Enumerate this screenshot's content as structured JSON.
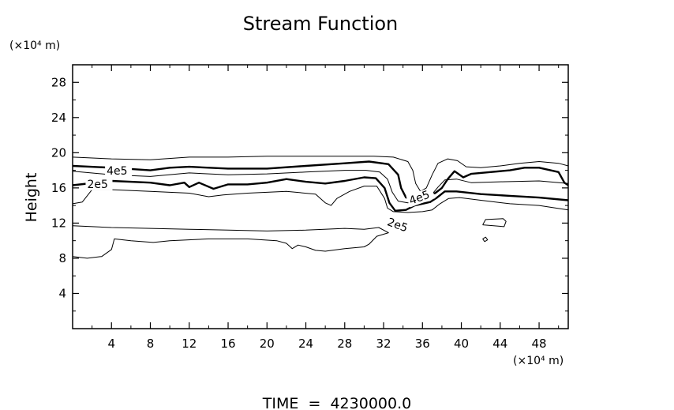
{
  "chart_data": {
    "type": "contour",
    "title": "Stream Function",
    "xlabel": "",
    "ylabel": "Height",
    "x_unit": "(×10⁴ m)",
    "y_unit": "(×10⁴ m)",
    "xlim": [
      0,
      51
    ],
    "ylim": [
      0,
      30
    ],
    "x_ticks": [
      4,
      8,
      12,
      16,
      20,
      24,
      28,
      32,
      36,
      40,
      44,
      48
    ],
    "y_ticks": [
      4,
      8,
      12,
      16,
      20,
      24,
      28
    ],
    "grid": false,
    "contour_labels": [
      "4e5",
      "2e5",
      "4e5",
      "2e5"
    ],
    "contours": [
      {
        "level": "upper-outer",
        "points": [
          [
            0,
            19.5
          ],
          [
            4,
            19.3
          ],
          [
            8,
            19.2
          ],
          [
            12,
            19.5
          ],
          [
            16,
            19.5
          ],
          [
            20,
            19.6
          ],
          [
            24,
            19.6
          ],
          [
            28,
            19.6
          ],
          [
            31,
            19.6
          ],
          [
            33,
            19.5
          ],
          [
            34.5,
            19
          ],
          [
            35,
            18
          ],
          [
            35.3,
            16.5
          ],
          [
            35.8,
            15.6
          ],
          [
            36.4,
            16
          ],
          [
            37,
            17.5
          ],
          [
            37.6,
            18.8
          ],
          [
            38.6,
            19.3
          ],
          [
            39.6,
            19.1
          ],
          [
            40.5,
            18.4
          ],
          [
            42,
            18.3
          ],
          [
            44,
            18.5
          ],
          [
            46,
            18.8
          ],
          [
            48,
            19
          ],
          [
            50,
            18.8
          ],
          [
            51,
            18.5
          ]
        ]
      },
      {
        "level": "4e5",
        "points": [
          [
            0,
            18.5
          ],
          [
            4,
            18.3
          ],
          [
            8,
            18
          ],
          [
            10,
            18.3
          ],
          [
            12,
            18.4
          ],
          [
            16,
            18.2
          ],
          [
            20,
            18.2
          ],
          [
            24,
            18.5
          ],
          [
            28,
            18.8
          ],
          [
            30.5,
            19
          ],
          [
            32.5,
            18.7
          ],
          [
            33.5,
            17.5
          ],
          [
            33.8,
            16
          ],
          [
            34.3,
            14.9
          ],
          [
            35.5,
            14.8
          ],
          [
            36.5,
            15.3
          ],
          [
            37.3,
            15.4
          ],
          [
            38,
            16
          ],
          [
            38.6,
            17
          ],
          [
            39.3,
            17.9
          ],
          [
            40.2,
            17.2
          ],
          [
            41,
            17.6
          ],
          [
            43,
            17.8
          ],
          [
            45,
            18
          ],
          [
            46.5,
            18.3
          ],
          [
            48,
            18.3
          ],
          [
            50,
            17.8
          ],
          [
            50.6,
            16.6
          ],
          [
            51,
            16.3
          ]
        ]
      },
      {
        "level": "mid-thin",
        "points": [
          [
            0,
            17.9
          ],
          [
            4,
            17.5
          ],
          [
            8,
            17.3
          ],
          [
            12,
            17.7
          ],
          [
            16,
            17.5
          ],
          [
            20,
            17.6
          ],
          [
            24,
            17.8
          ],
          [
            28,
            18
          ],
          [
            30.2,
            18
          ],
          [
            31.6,
            17.8
          ],
          [
            32.4,
            17
          ],
          [
            32.9,
            15.5
          ],
          [
            33.5,
            14.5
          ],
          [
            34.5,
            14.3
          ],
          [
            35.6,
            14.6
          ],
          [
            36.4,
            14.8
          ],
          [
            37,
            15.3
          ],
          [
            37.6,
            16.1
          ],
          [
            38.3,
            16.9
          ],
          [
            39.5,
            17
          ],
          [
            41,
            16.6
          ],
          [
            44,
            16.7
          ],
          [
            48,
            16.8
          ],
          [
            51,
            16.5
          ]
        ]
      },
      {
        "level": "2e5",
        "points": [
          [
            0,
            16.3
          ],
          [
            4,
            16.8
          ],
          [
            8,
            16.6
          ],
          [
            10,
            16.3
          ],
          [
            11.5,
            16.6
          ],
          [
            12,
            16.1
          ],
          [
            13,
            16.6
          ],
          [
            14.5,
            15.9
          ],
          [
            16,
            16.4
          ],
          [
            18,
            16.4
          ],
          [
            20,
            16.6
          ],
          [
            22,
            17
          ],
          [
            24,
            16.7
          ],
          [
            26,
            16.5
          ],
          [
            28,
            16.8
          ],
          [
            30,
            17.2
          ],
          [
            31.2,
            17.1
          ],
          [
            32.1,
            16
          ],
          [
            32.6,
            14.3
          ],
          [
            33.2,
            13.4
          ],
          [
            34.3,
            13.5
          ],
          [
            35.2,
            14
          ],
          [
            36,
            14.2
          ],
          [
            36.8,
            14.4
          ],
          [
            37.5,
            14.9
          ],
          [
            38.3,
            15.6
          ],
          [
            39.5,
            15.6
          ],
          [
            42,
            15.3
          ],
          [
            45,
            15.1
          ],
          [
            48,
            14.9
          ],
          [
            51,
            14.6
          ]
        ]
      },
      {
        "level": "lower-outer",
        "points": [
          [
            0,
            14.2
          ],
          [
            1,
            14.4
          ],
          [
            2,
            15.8
          ],
          [
            4,
            15.8
          ],
          [
            8,
            15.6
          ],
          [
            10,
            15.5
          ],
          [
            12,
            15.4
          ],
          [
            14,
            15
          ],
          [
            15.5,
            15.2
          ],
          [
            18,
            15.4
          ],
          [
            22,
            15.6
          ],
          [
            25,
            15.3
          ],
          [
            26,
            14.3
          ],
          [
            26.6,
            14
          ],
          [
            27.2,
            14.8
          ],
          [
            28.5,
            15.6
          ],
          [
            30,
            16.2
          ],
          [
            31.3,
            16.2
          ],
          [
            32.1,
            14.8
          ],
          [
            32.4,
            13.7
          ],
          [
            33,
            13.3
          ],
          [
            34.5,
            13.2
          ],
          [
            36,
            13.3
          ],
          [
            37,
            13.5
          ],
          [
            37.8,
            14.2
          ],
          [
            38.7,
            14.8
          ],
          [
            39.8,
            14.9
          ],
          [
            42,
            14.6
          ],
          [
            45,
            14.2
          ],
          [
            48,
            14
          ],
          [
            51,
            13.5
          ]
        ]
      },
      {
        "level": "low-band",
        "points": [
          [
            0,
            11.7
          ],
          [
            4,
            11.5
          ],
          [
            8,
            11.4
          ],
          [
            12,
            11.3
          ],
          [
            16,
            11.2
          ],
          [
            20,
            11.1
          ],
          [
            24,
            11.2
          ],
          [
            28,
            11.4
          ],
          [
            30,
            11.3
          ],
          [
            31.5,
            11.5
          ],
          [
            32.5,
            10.9
          ],
          [
            31.3,
            10.5
          ],
          [
            30.5,
            9.6
          ],
          [
            30,
            9.3
          ],
          [
            28,
            9.1
          ],
          [
            26,
            8.8
          ],
          [
            25,
            8.9
          ],
          [
            24,
            9.3
          ],
          [
            23.2,
            9.5
          ],
          [
            22.6,
            9.1
          ],
          [
            22,
            9.7
          ],
          [
            21,
            10
          ],
          [
            18,
            10.2
          ],
          [
            14,
            10.2
          ],
          [
            10,
            10
          ],
          [
            8.3,
            9.8
          ],
          [
            6,
            10
          ],
          [
            4.3,
            10.2
          ],
          [
            4,
            9
          ],
          [
            3,
            8.2
          ],
          [
            1.5,
            8
          ],
          [
            0,
            8.2
          ]
        ]
      },
      {
        "level": "blob-1",
        "points": [
          [
            42.2,
            10.2
          ],
          [
            42.5,
            10.4
          ],
          [
            42.7,
            10.1
          ],
          [
            42.4,
            9.9
          ],
          [
            42.2,
            10.2
          ]
        ]
      },
      {
        "level": "blob-2",
        "points": [
          [
            42.2,
            11.8
          ],
          [
            44.4,
            11.6
          ],
          [
            44.6,
            12.2
          ],
          [
            44.3,
            12.5
          ],
          [
            42.5,
            12.4
          ],
          [
            42.2,
            11.8
          ]
        ]
      }
    ]
  },
  "footer": {
    "time_label": "TIME  =  4230000.0"
  }
}
